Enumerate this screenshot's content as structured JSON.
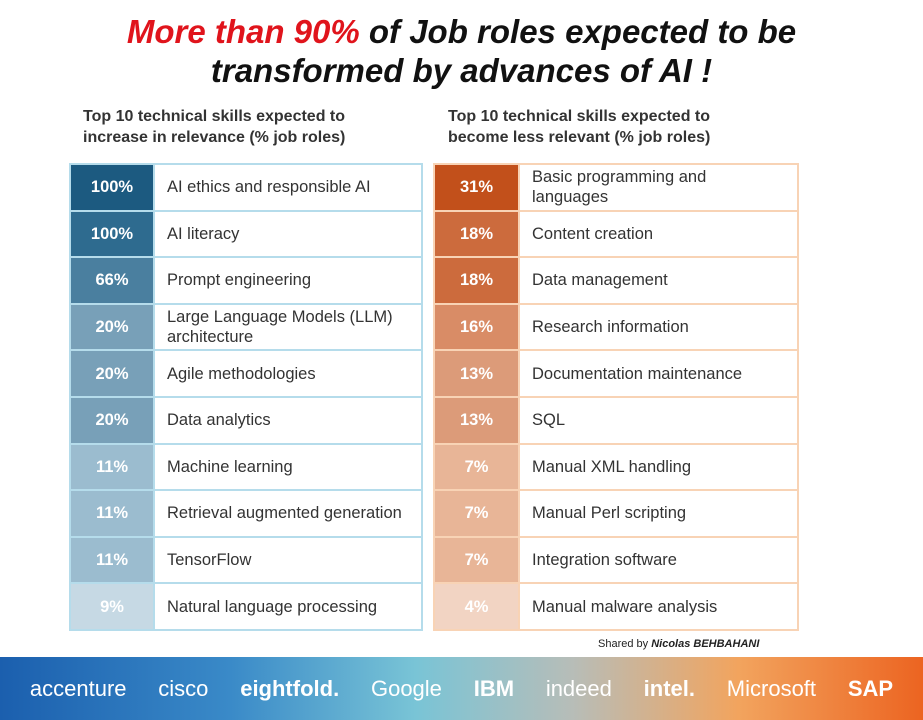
{
  "title": {
    "highlight": "More than 90%",
    "rest1": " of Job roles expected to be",
    "line2": "transformed by advances of AI !"
  },
  "left": {
    "heading1": "Top 10 technical skills expected to",
    "heading2": "increase in relevance (% job roles)",
    "rows": [
      {
        "pct": "100%",
        "skill": "AI ethics and responsible AI",
        "color": "#1c5a80"
      },
      {
        "pct": "100%",
        "skill": "AI literacy",
        "color": "#2e6b8f"
      },
      {
        "pct": "66%",
        "skill": "Prompt engineering",
        "color": "#4a7f9f"
      },
      {
        "pct": "20%",
        "skill": "Large Language Models (LLM) architecture",
        "color": "#78a0b8"
      },
      {
        "pct": "20%",
        "skill": "Agile methodologies",
        "color": "#78a0b8"
      },
      {
        "pct": "20%",
        "skill": "Data analytics",
        "color": "#78a0b8"
      },
      {
        "pct": "11%",
        "skill": "Machine learning",
        "color": "#9bbccf"
      },
      {
        "pct": "11%",
        "skill": "Retrieval augmented generation",
        "color": "#9bbccf"
      },
      {
        "pct": "11%",
        "skill": "TensorFlow",
        "color": "#9bbccf"
      },
      {
        "pct": "9%",
        "skill": "Natural language processing",
        "color": "#c6d9e4"
      }
    ]
  },
  "right": {
    "heading1": "Top 10 technical skills expected to",
    "heading2": "become less relevant (% job roles)",
    "rows": [
      {
        "pct": "31%",
        "skill": "Basic programming and languages",
        "color": "#c2501b"
      },
      {
        "pct": "18%",
        "skill": "Content creation",
        "color": "#cc6b3d"
      },
      {
        "pct": "18%",
        "skill": "Data management",
        "color": "#cc6b3d"
      },
      {
        "pct": "16%",
        "skill": "Research information",
        "color": "#d98c66"
      },
      {
        "pct": "13%",
        "skill": "Documentation maintenance",
        "color": "#dc9b79"
      },
      {
        "pct": "13%",
        "skill": "SQL",
        "color": "#dc9b79"
      },
      {
        "pct": "7%",
        "skill": "Manual XML handling",
        "color": "#e8b597"
      },
      {
        "pct": "7%",
        "skill": "Manual Perl scripting",
        "color": "#e8b597"
      },
      {
        "pct": "7%",
        "skill": "Integration software",
        "color": "#e8b597"
      },
      {
        "pct": "4%",
        "skill": "Manual malware analysis",
        "color": "#f2d4c3"
      }
    ]
  },
  "shared": {
    "prefix": "Shared by ",
    "name": "Nicolas BEHBAHANI"
  },
  "logos": [
    "accenture",
    "cisco",
    "eightfold.",
    "Google",
    "IBM",
    "indeed",
    "intel.",
    "Microsoft",
    "SAP"
  ]
}
